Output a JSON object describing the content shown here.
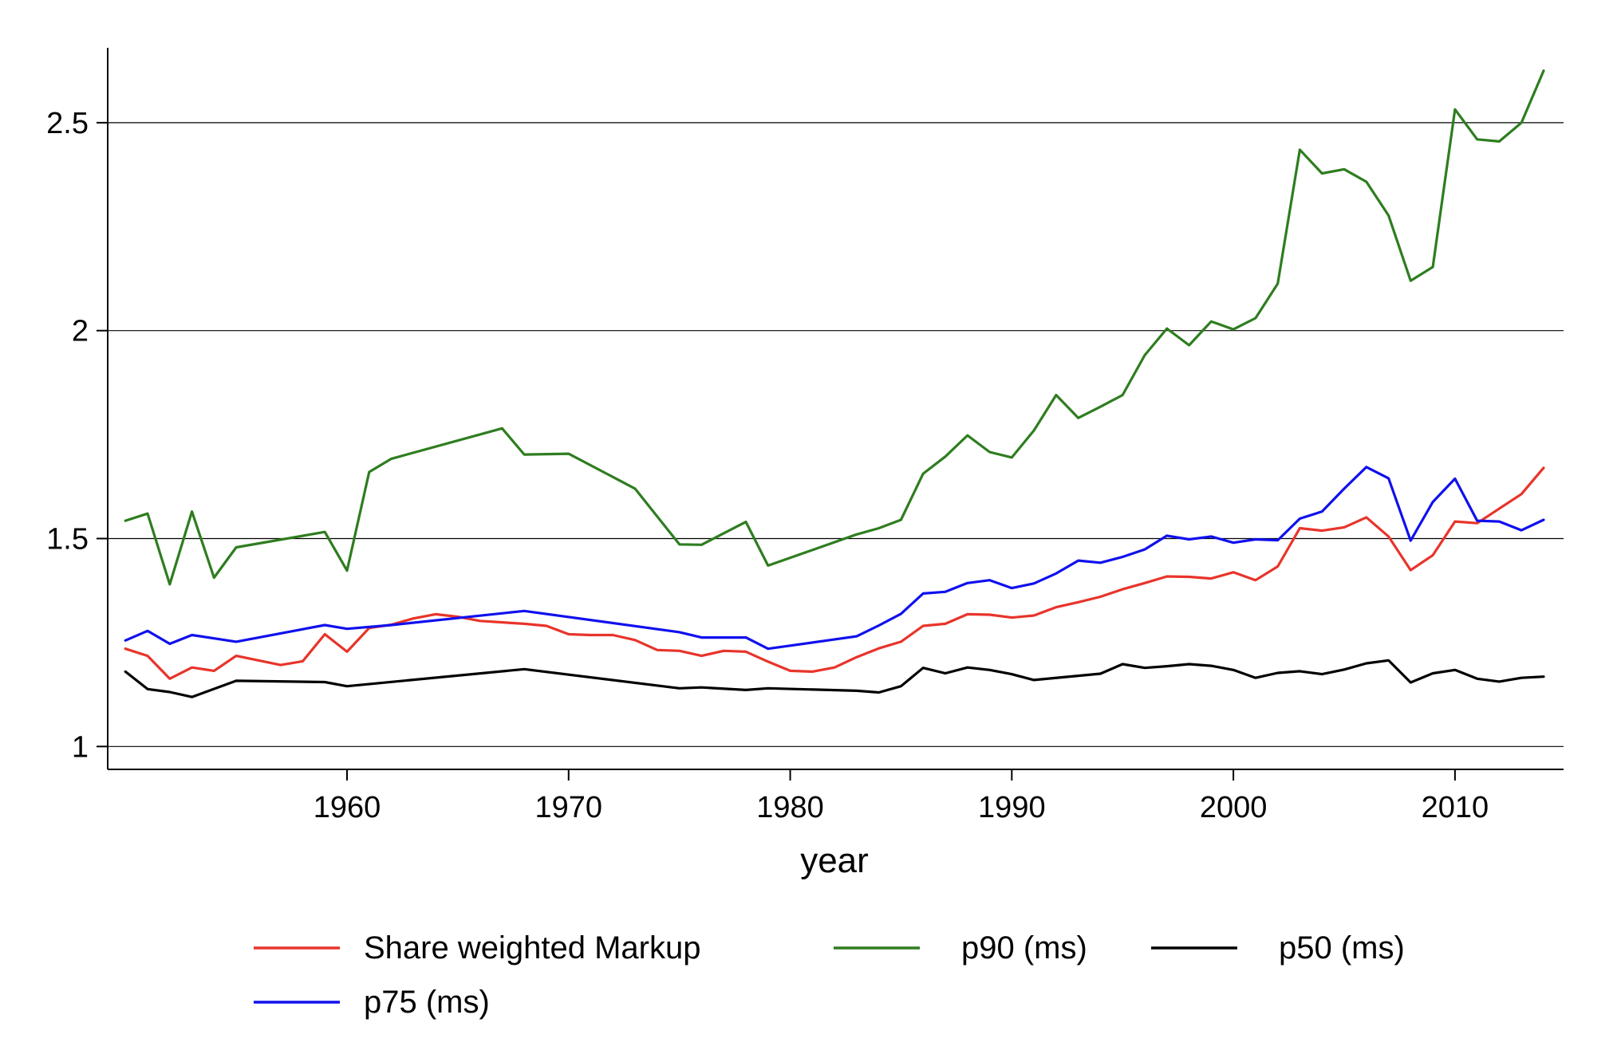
{
  "chart_data": {
    "type": "line",
    "title": "",
    "xlabel": "year",
    "ylabel": "",
    "xlim": [
      1949.2,
      2014.9
    ],
    "ylim": [
      0.945,
      2.68
    ],
    "x_ticks": [
      1960,
      1970,
      1980,
      1990,
      2000,
      2010
    ],
    "x_tick_labels": [
      "1960",
      "1970",
      "1980",
      "1990",
      "2000",
      "2010"
    ],
    "y_ticks": [
      1,
      1.5,
      2,
      2.5
    ],
    "y_tick_labels": [
      "1",
      "1.5",
      "2",
      "2.5"
    ],
    "grid": "horizontal",
    "legend_position": "bottom",
    "series": [
      {
        "name": "Share weighted Markup",
        "color": "#e8342b",
        "x": [
          1950,
          1951,
          1952,
          1953,
          1954,
          1955,
          1957,
          1958,
          1959,
          1960,
          1961,
          1962,
          1963,
          1964,
          1965,
          1966,
          1968,
          1969,
          1970,
          1971,
          1972,
          1973,
          1974,
          1975,
          1976,
          1977,
          1978,
          1979,
          1980,
          1981,
          1982,
          1983,
          1984,
          1985,
          1986,
          1987,
          1988,
          1989,
          1990,
          1991,
          1992,
          1993,
          1994,
          1995,
          1996,
          1997,
          1998,
          1999,
          2000,
          2001,
          2002,
          2003,
          2004,
          2005,
          2006,
          2007,
          2008,
          2009,
          2010,
          2011,
          2012,
          2013,
          2014
        ],
        "values": [
          1.235,
          1.218,
          1.163,
          1.19,
          1.182,
          1.218,
          1.196,
          1.205,
          1.27,
          1.228,
          1.285,
          1.293,
          1.308,
          1.318,
          1.312,
          1.302,
          1.295,
          1.29,
          1.27,
          1.268,
          1.268,
          1.256,
          1.232,
          1.23,
          1.218,
          1.23,
          1.228,
          1.204,
          1.182,
          1.18,
          1.19,
          1.215,
          1.236,
          1.252,
          1.29,
          1.295,
          1.318,
          1.317,
          1.31,
          1.315,
          1.335,
          1.347,
          1.36,
          1.378,
          1.393,
          1.409,
          1.408,
          1.404,
          1.419,
          1.4,
          1.433,
          1.525,
          1.519,
          1.527,
          1.551,
          1.505,
          1.424,
          1.46,
          1.541,
          1.537,
          1.572,
          1.607,
          1.67
        ]
      },
      {
        "name": "p90 (ms)",
        "color": "#2e7d1f",
        "x": [
          1950,
          1951,
          1952,
          1953,
          1954,
          1955,
          1959,
          1960,
          1961,
          1962,
          1967,
          1968,
          1970,
          1973,
          1975,
          1976,
          1978,
          1979,
          1983,
          1984,
          1985,
          1986,
          1987,
          1988,
          1989,
          1990,
          1991,
          1992,
          1993,
          1994,
          1995,
          1996,
          1997,
          1998,
          1999,
          2000,
          2001,
          2002,
          2003,
          2004,
          2005,
          2006,
          2007,
          2008,
          2009,
          2010,
          2011,
          2012,
          2013,
          2014
        ],
        "values": [
          1.543,
          1.56,
          1.39,
          1.565,
          1.406,
          1.479,
          1.516,
          1.423,
          1.66,
          1.692,
          1.765,
          1.702,
          1.704,
          1.62,
          1.486,
          1.485,
          1.54,
          1.435,
          1.51,
          1.525,
          1.545,
          1.656,
          1.697,
          1.748,
          1.708,
          1.695,
          1.76,
          1.845,
          1.79,
          1.817,
          1.845,
          1.941,
          2.005,
          1.965,
          2.022,
          2.003,
          2.03,
          2.113,
          2.435,
          2.378,
          2.388,
          2.358,
          2.277,
          2.12,
          2.153,
          2.532,
          2.46,
          2.455,
          2.5,
          2.625
        ]
      },
      {
        "name": "p50 (ms)",
        "color": "#000000",
        "x": [
          1950,
          1951,
          1952,
          1953,
          1955,
          1959,
          1960,
          1968,
          1975,
          1976,
          1978,
          1979,
          1983,
          1984,
          1985,
          1986,
          1987,
          1988,
          1989,
          1990,
          1991,
          1994,
          1995,
          1996,
          1997,
          1998,
          1999,
          2000,
          2001,
          2002,
          2003,
          2004,
          2005,
          2006,
          2007,
          2008,
          2009,
          2010,
          2011,
          2012,
          2013,
          2014
        ],
        "values": [
          1.18,
          1.138,
          1.131,
          1.119,
          1.158,
          1.155,
          1.145,
          1.186,
          1.14,
          1.142,
          1.136,
          1.14,
          1.134,
          1.13,
          1.145,
          1.189,
          1.176,
          1.19,
          1.184,
          1.174,
          1.16,
          1.175,
          1.198,
          1.189,
          1.193,
          1.198,
          1.194,
          1.184,
          1.165,
          1.177,
          1.181,
          1.174,
          1.185,
          1.2,
          1.207,
          1.154,
          1.176,
          1.184,
          1.163,
          1.156,
          1.165,
          1.168
        ]
      },
      {
        "name": "p75 (ms)",
        "color": "#1010ee",
        "x": [
          1950,
          1951,
          1952,
          1953,
          1955,
          1959,
          1960,
          1962,
          1968,
          1975,
          1976,
          1978,
          1979,
          1983,
          1984,
          1985,
          1986,
          1987,
          1988,
          1989,
          1990,
          1991,
          1992,
          1993,
          1994,
          1995,
          1996,
          1997,
          1998,
          1999,
          2000,
          2001,
          2002,
          2003,
          2004,
          2005,
          2006,
          2007,
          2008,
          2009,
          2010,
          2011,
          2012,
          2013,
          2014
        ],
        "values": [
          1.255,
          1.278,
          1.247,
          1.268,
          1.252,
          1.292,
          1.283,
          1.292,
          1.326,
          1.275,
          1.262,
          1.262,
          1.235,
          1.265,
          1.291,
          1.319,
          1.368,
          1.372,
          1.393,
          1.4,
          1.381,
          1.392,
          1.416,
          1.447,
          1.442,
          1.456,
          1.474,
          1.507,
          1.498,
          1.505,
          1.49,
          1.498,
          1.496,
          1.548,
          1.565,
          1.62,
          1.672,
          1.645,
          1.495,
          1.588,
          1.644,
          1.543,
          1.541,
          1.52,
          1.545
        ]
      }
    ],
    "legend": {
      "rows": [
        [
          "Share weighted Markup",
          "p90 (ms)",
          "p50 (ms)"
        ],
        [
          "p75 (ms)"
        ]
      ]
    }
  }
}
